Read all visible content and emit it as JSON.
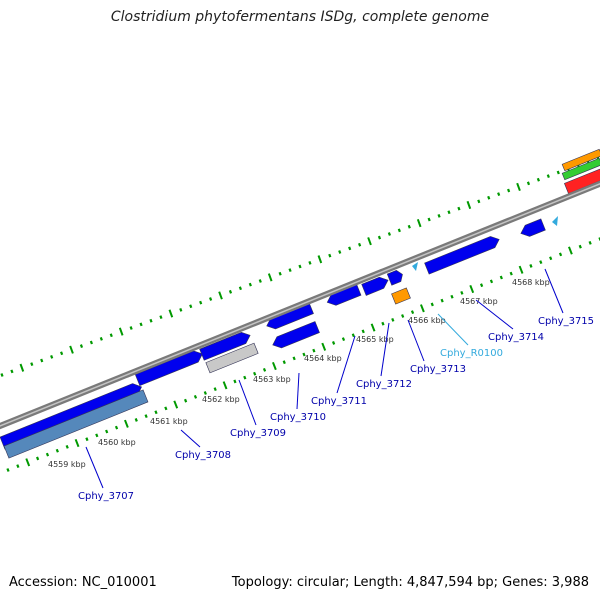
{
  "title": "Clostridium phytofermentans ISDg, complete genome",
  "accession_label": "Accession: NC_010001",
  "topology_label": "Topology: circular; Length: 4,847,594 bp; Genes: 3,988",
  "colors": {
    "cds": "#0000ee",
    "cds_highlight": "#5588bb",
    "pseudo": "#c8c8c8",
    "rna_feature": "#ff9900",
    "rrna": "#33aadd",
    "tick": "#009900",
    "axis": "#888888",
    "gene_label": "#0000aa",
    "rna_label": "#33aadd",
    "leader_line": "#0000cc"
  },
  "kbp_labels": [
    "4559 kbp",
    "4560 kbp",
    "4561 kbp",
    "4562 kbp",
    "4563 kbp",
    "4564 kbp",
    "4565 kbp",
    "4566 kbp",
    "4567 kbp",
    "4568 kbp"
  ],
  "gene_labels": [
    {
      "name": "Cphy_3707",
      "type": "cds"
    },
    {
      "name": "Cphy_3708",
      "type": "cds"
    },
    {
      "name": "Cphy_3709",
      "type": "cds"
    },
    {
      "name": "Cphy_3710",
      "type": "cds"
    },
    {
      "name": "Cphy_3711",
      "type": "cds"
    },
    {
      "name": "Cphy_3712",
      "type": "cds"
    },
    {
      "name": "Cphy_3713",
      "type": "cds"
    },
    {
      "name": "Cphy_R0100",
      "type": "rna"
    },
    {
      "name": "Cphy_3714",
      "type": "cds"
    },
    {
      "name": "Cphy_3715",
      "type": "cds"
    }
  ]
}
